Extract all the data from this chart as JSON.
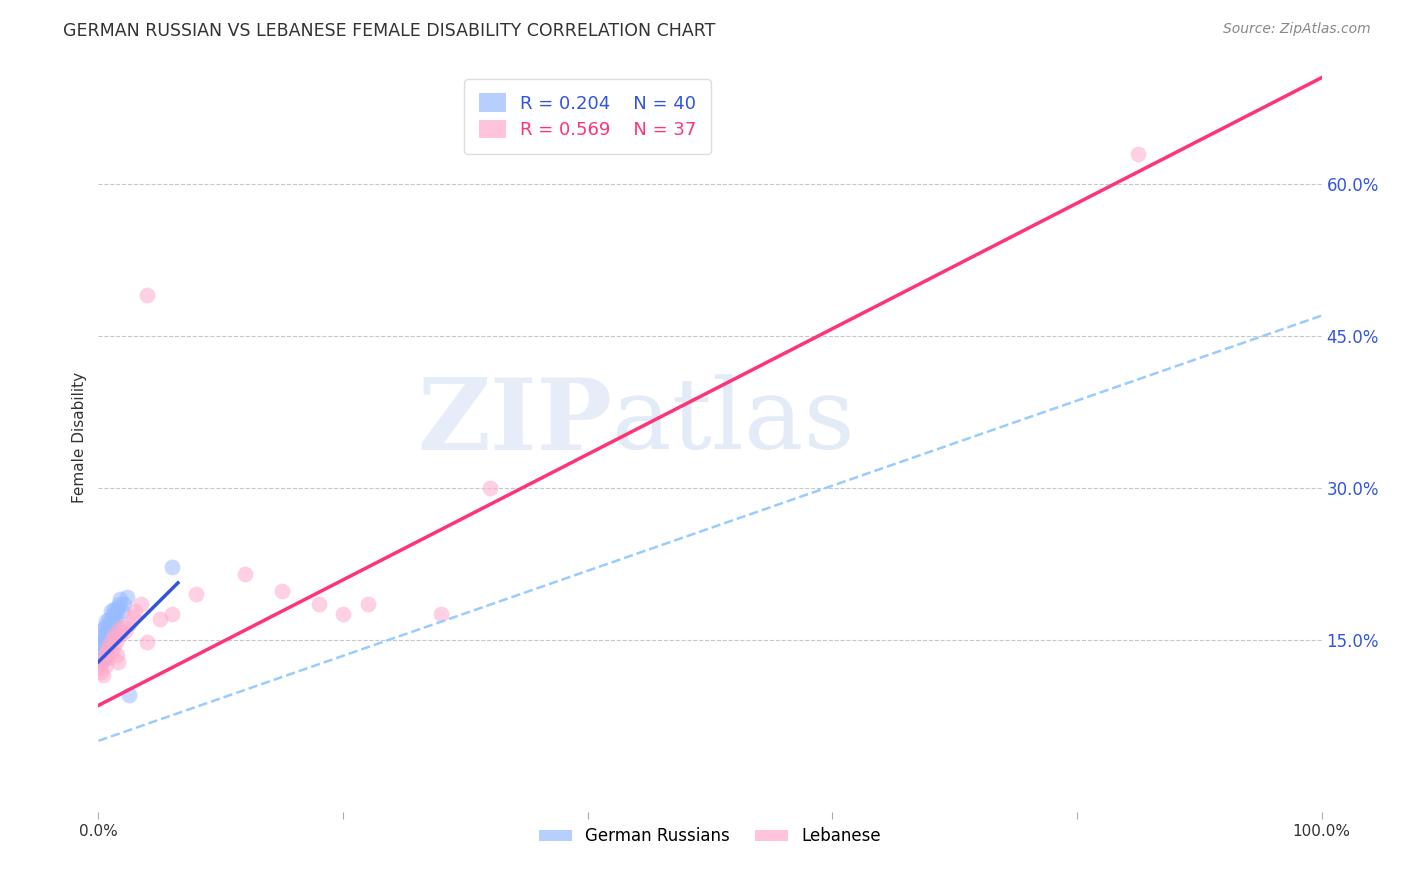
{
  "title": "GERMAN RUSSIAN VS LEBANESE FEMALE DISABILITY CORRELATION CHART",
  "source": "Source: ZipAtlas.com",
  "xlabel": "",
  "ylabel": "Female Disability",
  "xlim": [
    0.0,
    1.0
  ],
  "ylim": [
    -0.02,
    0.72
  ],
  "xtick_labels": [
    "0.0%",
    "",
    "",
    "",
    "",
    "100.0%"
  ],
  "xtick_vals": [
    0.0,
    0.2,
    0.4,
    0.6,
    0.8,
    1.0
  ],
  "ytick_labels": [
    "15.0%",
    "30.0%",
    "45.0%",
    "60.0%"
  ],
  "ytick_vals": [
    0.15,
    0.3,
    0.45,
    0.6
  ],
  "grid_color": "#c8c8c8",
  "background_color": "#ffffff",
  "watermark_zip": "ZIP",
  "watermark_atlas": "atlas",
  "legend_r1": "R = 0.204",
  "legend_n1": "N = 40",
  "legend_r2": "R = 0.569",
  "legend_n2": "N = 37",
  "blue_color": "#99bbff",
  "pink_color": "#ffaacc",
  "blue_line_color": "#3355dd",
  "pink_line_color": "#ff3377",
  "dashed_line_color": "#99ccff",
  "label1": "German Russians",
  "label2": "Lebanese",
  "german_russian_x": [
    0.001,
    0.002,
    0.002,
    0.003,
    0.003,
    0.003,
    0.004,
    0.004,
    0.004,
    0.005,
    0.005,
    0.005,
    0.006,
    0.006,
    0.006,
    0.007,
    0.007,
    0.008,
    0.008,
    0.009,
    0.009,
    0.01,
    0.01,
    0.01,
    0.011,
    0.011,
    0.012,
    0.012,
    0.013,
    0.013,
    0.014,
    0.015,
    0.016,
    0.017,
    0.018,
    0.019,
    0.021,
    0.023,
    0.025,
    0.06
  ],
  "german_russian_y": [
    0.135,
    0.128,
    0.142,
    0.13,
    0.145,
    0.155,
    0.138,
    0.148,
    0.16,
    0.132,
    0.152,
    0.162,
    0.14,
    0.155,
    0.168,
    0.145,
    0.158,
    0.15,
    0.165,
    0.148,
    0.17,
    0.155,
    0.168,
    0.178,
    0.16,
    0.172,
    0.165,
    0.175,
    0.168,
    0.18,
    0.172,
    0.178,
    0.182,
    0.185,
    0.19,
    0.178,
    0.185,
    0.192,
    0.095,
    0.222
  ],
  "lebanese_x": [
    0.001,
    0.002,
    0.003,
    0.004,
    0.005,
    0.006,
    0.007,
    0.008,
    0.009,
    0.01,
    0.011,
    0.012,
    0.013,
    0.014,
    0.015,
    0.016,
    0.017,
    0.018,
    0.02,
    0.022,
    0.025,
    0.028,
    0.03,
    0.035,
    0.04,
    0.05,
    0.06,
    0.08,
    0.12,
    0.15,
    0.18,
    0.2,
    0.22,
    0.28,
    0.32,
    0.85,
    0.04
  ],
  "lebanese_y": [
    0.122,
    0.118,
    0.128,
    0.115,
    0.135,
    0.125,
    0.14,
    0.132,
    0.145,
    0.138,
    0.15,
    0.142,
    0.155,
    0.148,
    0.135,
    0.128,
    0.16,
    0.155,
    0.162,
    0.158,
    0.165,
    0.172,
    0.178,
    0.185,
    0.148,
    0.17,
    0.175,
    0.195,
    0.215,
    0.198,
    0.185,
    0.175,
    0.185,
    0.175,
    0.3,
    0.63,
    0.49
  ],
  "blue_line_x_start": 0.0,
  "blue_line_x_end": 0.065,
  "blue_solid_slope": 1.2,
  "blue_solid_intercept": 0.128,
  "blue_dashed_slope": 0.42,
  "blue_dashed_intercept": 0.05,
  "pink_solid_slope": 0.62,
  "pink_solid_intercept": 0.085
}
